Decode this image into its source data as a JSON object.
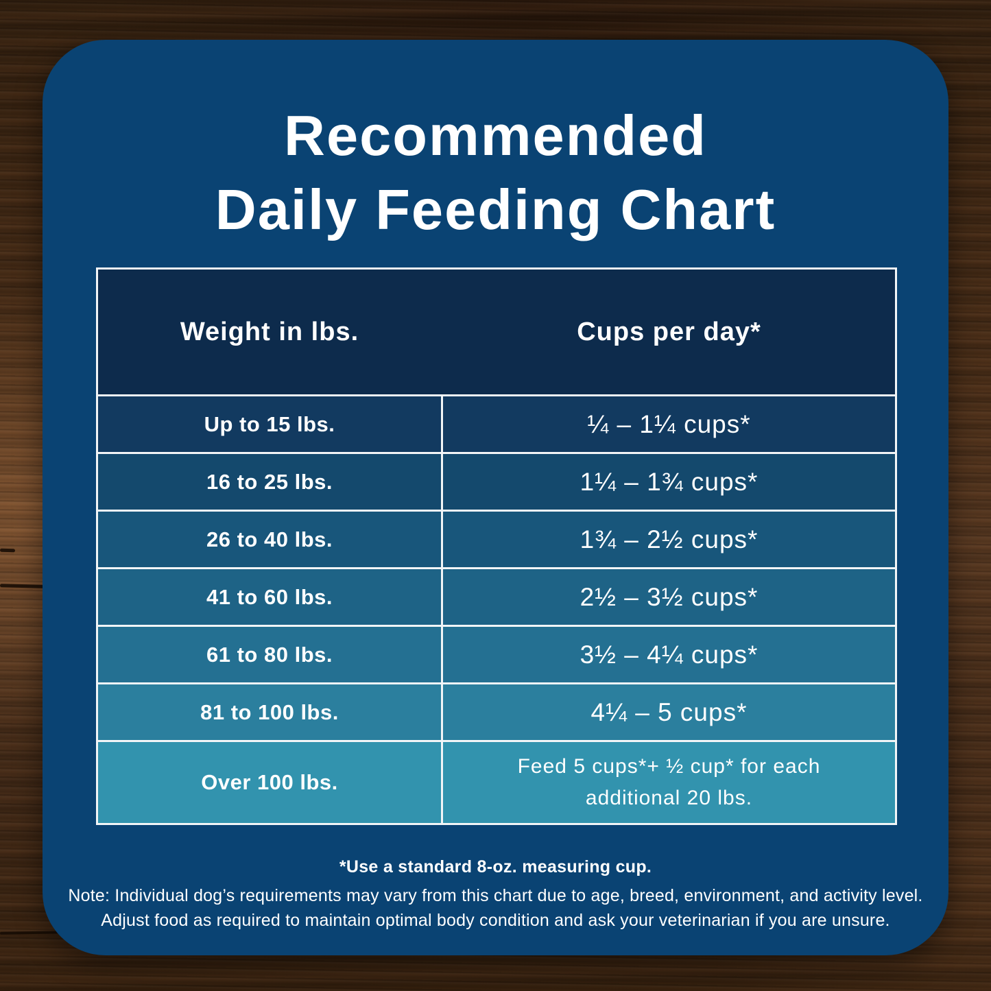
{
  "title": {
    "line1": "Recommended",
    "line2": "Daily Feeding Chart"
  },
  "table": {
    "header_color": "#0d2b4c",
    "headers": [
      "Weight in lbs.",
      "Cups per day*"
    ],
    "rows": [
      {
        "weight": "Up to 15 lbs.",
        "cups": "¼ – 1¼ cups*",
        "color": "#123a60"
      },
      {
        "weight": "16 to 25 lbs.",
        "cups": "1¼ – 1¾ cups*",
        "color": "#14496d"
      },
      {
        "weight": "26 to 40 lbs.",
        "cups": "1¾ – 2½ cups*",
        "color": "#18567b"
      },
      {
        "weight": "41 to 60 lbs.",
        "cups": "2½ – 3½ cups*",
        "color": "#1e6386"
      },
      {
        "weight": "61 to 80 lbs.",
        "cups": "3½ – 4¼ cups*",
        "color": "#247092"
      },
      {
        "weight": "81 to 100 lbs.",
        "cups": "4¼ – 5 cups*",
        "color": "#2b7f9e"
      },
      {
        "weight": "Over 100 lbs.",
        "cups": "Feed 5 cups*+ ½ cup* for each additional 20 lbs.",
        "color": "#3293ae"
      }
    ]
  },
  "footnotes": {
    "measuring_cup": "*Use a standard 8-oz. measuring cup.",
    "note_line1": "Note: Individual dog’s requirements may vary from this chart due to age, breed, environment, and activity level.",
    "note_line2": "Adjust food as required to maintain optimal body condition and ask your veterinarian if you are unsure."
  },
  "colors": {
    "panel": "#0a4373",
    "text": "#ffffff",
    "table_grid": "#f2f5f7",
    "wood_base": "#4a2e1c"
  },
  "chart_data": {
    "type": "table",
    "title": "Recommended Daily Feeding Chart",
    "columns": [
      "Weight in lbs.",
      "Cups per day*"
    ],
    "rows": [
      [
        "Up to 15 lbs.",
        "¼ – 1¼ cups*"
      ],
      [
        "16 to 25 lbs.",
        "1¼ – 1¾ cups*"
      ],
      [
        "26 to 40 lbs.",
        "1¾ – 2½ cups*"
      ],
      [
        "41 to 60 lbs.",
        "2½ – 3½ cups*"
      ],
      [
        "61 to 80 lbs.",
        "3½ – 4¼ cups*"
      ],
      [
        "81 to 100 lbs.",
        "4¼ – 5 cups*"
      ],
      [
        "Over 100 lbs.",
        "Feed 5 cups*+ ½ cup* for each additional 20 lbs."
      ]
    ],
    "footnotes": [
      "*Use a standard 8-oz. measuring cup.",
      "Note: Individual dog’s requirements may vary from this chart due to age, breed, environment, and activity level.",
      "Adjust food as required to maintain optimal body condition and ask your veterinarian if you are unsure."
    ],
    "layout_hints": {
      "row_background_gradient": [
        "#123a60",
        "#3293ae"
      ],
      "header_background": "#0d2b4c",
      "grid": "on"
    }
  }
}
